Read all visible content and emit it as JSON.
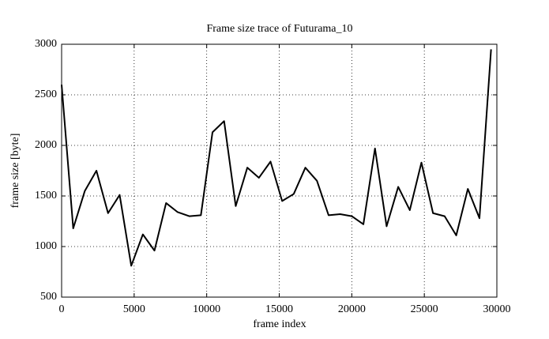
{
  "chart_data": {
    "type": "line",
    "title": "Frame size trace of Futurama_10",
    "x_label": "frame index",
    "y_label": "frame size [byte]",
    "x": [
      0,
      800,
      1600,
      2400,
      3200,
      4000,
      4800,
      5600,
      6400,
      7200,
      8000,
      8800,
      9600,
      10400,
      11200,
      12000,
      12800,
      13600,
      14400,
      15200,
      16000,
      16800,
      17600,
      18400,
      19200,
      20000,
      20800,
      21600,
      22400,
      23200,
      24000,
      24800,
      25600,
      26400,
      27200,
      28000,
      28800,
      29600
    ],
    "series": [
      {
        "name": "Futurama_10",
        "color": "#000000",
        "values": [
          2600,
          1180,
          1550,
          1750,
          1330,
          1510,
          810,
          1120,
          960,
          1430,
          1340,
          1300,
          1310,
          2130,
          2240,
          1400,
          1780,
          1680,
          1840,
          1450,
          1520,
          1780,
          1650,
          1310,
          1320,
          1300,
          1220,
          1970,
          1200,
          1590,
          1360,
          1830,
          1330,
          1300,
          1110,
          1570,
          1280,
          2950
        ]
      }
    ],
    "xlim": [
      0,
      30000
    ],
    "xticks": [
      0,
      5000,
      10000,
      15000,
      20000,
      25000,
      30000
    ],
    "ylim": [
      500,
      3000
    ],
    "yticks": [
      500,
      1000,
      1500,
      2000,
      2500,
      3000
    ],
    "grid": true
  }
}
